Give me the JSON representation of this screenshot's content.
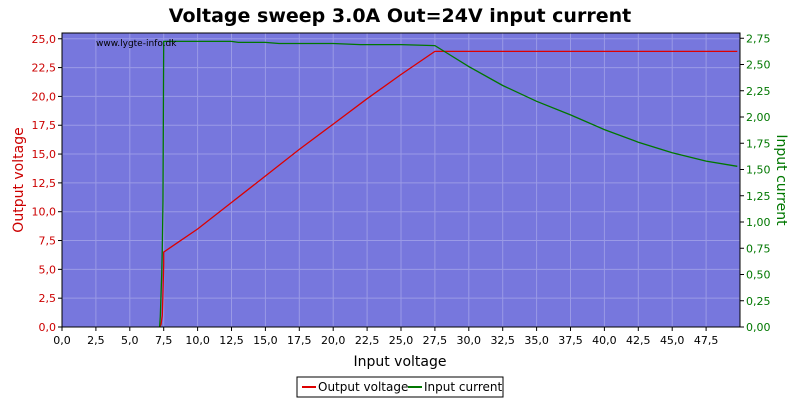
{
  "chart_data": {
    "type": "line",
    "title": "Voltage sweep 3.0A Out=24V input current",
    "watermark": "www.lygte-info.dk",
    "xlabel": "Input voltage",
    "ylabel_left": "Output voltage",
    "ylabel_right": "Input current",
    "xlim": [
      0,
      50
    ],
    "ylim_left": [
      0,
      25.5
    ],
    "ylim_right": [
      0,
      2.8
    ],
    "x_ticks": [
      "0,0",
      "2,5",
      "5,0",
      "7,5",
      "10,0",
      "12,5",
      "15,0",
      "17,5",
      "20,0",
      "22,5",
      "25,0",
      "27,5",
      "30,0",
      "32,5",
      "35,0",
      "37,5",
      "40,0",
      "42,5",
      "45,0",
      "47,5"
    ],
    "y_left_ticks": [
      "0,0",
      "2,5",
      "5,0",
      "7,5",
      "10,0",
      "12,5",
      "15,0",
      "17,5",
      "20,0",
      "22,5",
      "25,0"
    ],
    "y_right_ticks": [
      "0,00",
      "0,25",
      "0,50",
      "0,75",
      "1,00",
      "1,25",
      "1,50",
      "1,75",
      "2,00",
      "2,25",
      "2,50",
      "2,75"
    ],
    "grid": true,
    "legend_position": "bottom-center",
    "colors": {
      "plot_bg": "#7777dd",
      "grid": "#9a9ae6",
      "output_voltage": "#dd0000",
      "input_current": "#007700",
      "left_axis_text": "#cc0000",
      "right_axis_text": "#007700"
    },
    "series": [
      {
        "name": "Output voltage",
        "axis": "left",
        "x": [
          7.2,
          7.3,
          7.4,
          7.45,
          7.5,
          7.5,
          8.5,
          10,
          12.5,
          15,
          17.5,
          20,
          22.5,
          25,
          27.5,
          30,
          35,
          40,
          45,
          49.8
        ],
        "y": [
          0,
          0.2,
          1.0,
          3.0,
          5.5,
          6.5,
          7.3,
          8.5,
          10.8,
          13.1,
          15.4,
          17.6,
          19.8,
          21.9,
          23.9,
          23.9,
          23.9,
          23.9,
          23.9,
          23.9
        ]
      },
      {
        "name": "Input current",
        "axis": "right",
        "x": [
          7.2,
          7.25,
          7.3,
          7.35,
          7.4,
          7.45,
          7.5,
          10,
          12.5,
          13,
          15,
          16,
          20,
          22,
          25,
          27.5,
          28.5,
          30,
          32.5,
          35,
          37.5,
          40,
          42.5,
          45,
          47.5,
          49.8
        ],
        "y": [
          0.0,
          0.1,
          0.3,
          0.5,
          0.75,
          1.2,
          2.72,
          2.72,
          2.72,
          2.71,
          2.71,
          2.7,
          2.7,
          2.69,
          2.69,
          2.68,
          2.6,
          2.48,
          2.3,
          2.15,
          2.02,
          1.88,
          1.76,
          1.66,
          1.58,
          1.53
        ]
      }
    ]
  }
}
